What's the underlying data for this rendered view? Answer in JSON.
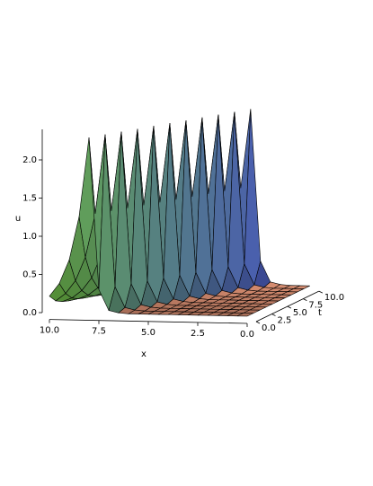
{
  "chart_data": {
    "type": "surface",
    "x": [
      0,
      0.5,
      1,
      1.5,
      2,
      2.5,
      3,
      3.5,
      4,
      4.5,
      5,
      5.5,
      6,
      6.5,
      7,
      7.5,
      8,
      8.5,
      9,
      9.5,
      10
    ],
    "t": [
      0,
      1,
      2,
      3,
      4,
      5,
      6,
      7,
      8,
      9,
      10
    ],
    "z": [
      [
        0,
        0,
        0,
        0,
        0,
        0,
        0,
        0,
        0,
        0,
        0,
        0,
        0,
        0.01,
        0.04,
        0.31,
        2.3,
        1.26,
        0.69,
        0.38,
        0.21
      ],
      [
        0,
        0,
        0,
        0,
        0,
        0,
        0,
        0,
        0,
        0,
        0,
        0,
        0.01,
        0.04,
        0.31,
        2.3,
        1.26,
        0.69,
        0.38,
        0.21,
        0.11
      ],
      [
        0,
        0,
        0,
        0,
        0,
        0,
        0,
        0,
        0,
        0,
        0,
        0.01,
        0.04,
        0.31,
        2.3,
        1.26,
        0.69,
        0.38,
        0.21,
        0.11,
        0.06
      ],
      [
        0,
        0,
        0,
        0,
        0,
        0,
        0,
        0,
        0,
        0,
        0.01,
        0.04,
        0.31,
        2.3,
        1.26,
        0.69,
        0.38,
        0.21,
        0.11,
        0.06,
        0.03
      ],
      [
        0,
        0,
        0,
        0,
        0,
        0,
        0,
        0,
        0,
        0.01,
        0.04,
        0.31,
        2.3,
        1.26,
        0.69,
        0.38,
        0.21,
        0.11,
        0.06,
        0.03,
        0.02
      ],
      [
        0,
        0,
        0,
        0,
        0,
        0,
        0,
        0,
        0.01,
        0.04,
        0.31,
        2.3,
        1.26,
        0.69,
        0.38,
        0.21,
        0.11,
        0.06,
        0.03,
        0.02,
        0.01
      ],
      [
        0,
        0,
        0,
        0,
        0,
        0,
        0,
        0.01,
        0.04,
        0.31,
        2.3,
        1.26,
        0.69,
        0.38,
        0.21,
        0.11,
        0.06,
        0.03,
        0.02,
        0.01,
        0.01
      ],
      [
        0,
        0,
        0,
        0,
        0,
        0,
        0.01,
        0.04,
        0.31,
        2.3,
        1.26,
        0.69,
        0.38,
        0.21,
        0.11,
        0.06,
        0.03,
        0.02,
        0.01,
        0.01,
        0
      ],
      [
        0,
        0,
        0,
        0,
        0,
        0.01,
        0.04,
        0.31,
        2.3,
        1.26,
        0.69,
        0.38,
        0.21,
        0.11,
        0.06,
        0.03,
        0.02,
        0.01,
        0.01,
        0,
        0
      ],
      [
        0,
        0,
        0,
        0,
        0.01,
        0.04,
        0.31,
        2.3,
        1.26,
        0.69,
        0.38,
        0.21,
        0.11,
        0.06,
        0.03,
        0.02,
        0.01,
        0.01,
        0,
        0,
        0
      ],
      [
        0,
        0,
        0,
        0.01,
        0.04,
        0.31,
        2.3,
        1.26,
        0.69,
        0.38,
        0.21,
        0.11,
        0.06,
        0.03,
        0.02,
        0.01,
        0.01,
        0,
        0,
        0,
        0
      ]
    ],
    "xlabel": "x",
    "ylabel": "t",
    "zlabel": "u",
    "xlim": [
      0,
      10
    ],
    "ylim": [
      0,
      10
    ],
    "zlim": [
      0,
      2.4
    ],
    "xticks": [
      {
        "value": 0,
        "label": "0.0"
      },
      {
        "value": 2.5,
        "label": "2.5"
      },
      {
        "value": 5,
        "label": "5.0"
      },
      {
        "value": 7.5,
        "label": "7.5"
      },
      {
        "value": 10,
        "label": "10.0"
      }
    ],
    "yticks": [
      {
        "value": 0,
        "label": "0.0"
      },
      {
        "value": 2.5,
        "label": "2.5"
      },
      {
        "value": 5,
        "label": "5.0"
      },
      {
        "value": 7.5,
        "label": "7.5"
      },
      {
        "value": 10,
        "label": "10.0"
      }
    ],
    "zticks": [
      {
        "value": 0,
        "label": "0.0"
      },
      {
        "value": 0.5,
        "label": "0.5"
      },
      {
        "value": 1,
        "label": "1.0"
      },
      {
        "value": 1.5,
        "label": "1.5"
      },
      {
        "value": 2,
        "label": "2.0"
      }
    ],
    "colors": [
      "#5fa23c",
      "#3a3cc4"
    ],
    "floor_color": "#a86e58",
    "mesh_color": "#000000"
  }
}
